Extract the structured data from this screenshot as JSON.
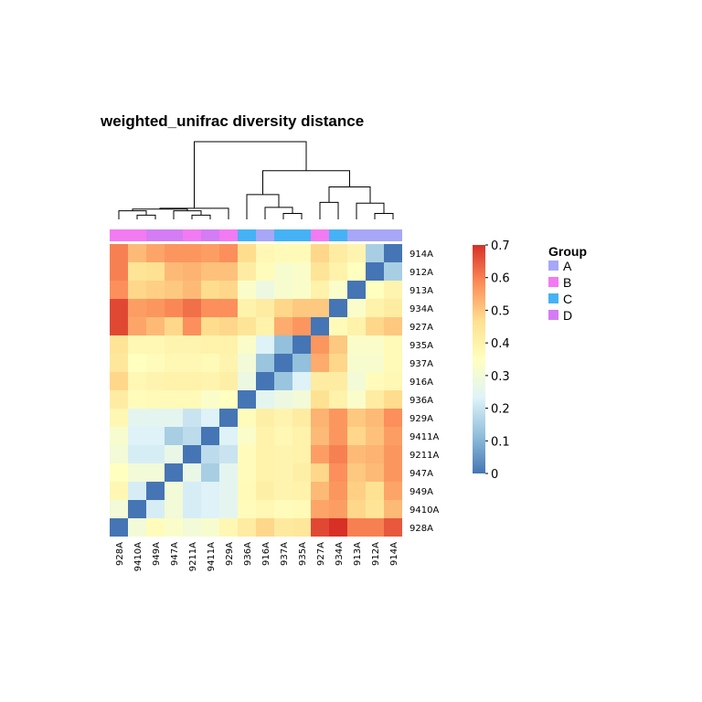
{
  "chart_data": {
    "type": "heatmap",
    "title": "weighted_unifrac diversity distance",
    "row_labels": [
      "914A",
      "912A",
      "913A",
      "934A",
      "927A",
      "935A",
      "937A",
      "916A",
      "936A",
      "929A",
      "9411A",
      "9211A",
      "947A",
      "949A",
      "9410A",
      "928A"
    ],
    "col_labels": [
      "928A",
      "9410A",
      "949A",
      "947A",
      "9211A",
      "9411A",
      "929A",
      "936A",
      "916A",
      "937A",
      "935A",
      "927A",
      "934A",
      "913A",
      "912A",
      "914A"
    ],
    "col_groups": [
      "B",
      "B",
      "D",
      "D",
      "B",
      "D",
      "B",
      "C",
      "A",
      "C",
      "C",
      "B",
      "C",
      "A",
      "A",
      "A"
    ],
    "values": [
      [
        0.6,
        0.52,
        0.55,
        0.57,
        0.57,
        0.56,
        0.58,
        0.47,
        0.38,
        0.37,
        0.37,
        0.48,
        0.42,
        0.39,
        0.15,
        0.0
      ],
      [
        0.6,
        0.45,
        0.46,
        0.52,
        0.53,
        0.51,
        0.51,
        0.42,
        0.36,
        0.32,
        0.33,
        0.45,
        0.4,
        0.35,
        0.0,
        0.15
      ],
      [
        0.58,
        0.48,
        0.49,
        0.5,
        0.52,
        0.47,
        0.48,
        0.33,
        0.28,
        0.32,
        0.33,
        0.4,
        0.33,
        0.0,
        0.35,
        0.39
      ],
      [
        0.67,
        0.56,
        0.57,
        0.59,
        0.62,
        0.58,
        0.58,
        0.4,
        0.42,
        0.48,
        0.5,
        0.5,
        0.0,
        0.33,
        0.4,
        0.42
      ],
      [
        0.67,
        0.55,
        0.52,
        0.48,
        0.58,
        0.47,
        0.48,
        0.45,
        0.4,
        0.54,
        0.57,
        0.0,
        0.37,
        0.4,
        0.48,
        0.5
      ],
      [
        0.45,
        0.38,
        0.38,
        0.39,
        0.39,
        0.4,
        0.4,
        0.33,
        0.23,
        0.12,
        0.0,
        0.57,
        0.5,
        0.33,
        0.33,
        0.37
      ],
      [
        0.44,
        0.35,
        0.36,
        0.38,
        0.38,
        0.37,
        0.39,
        0.3,
        0.13,
        0.0,
        0.12,
        0.54,
        0.48,
        0.32,
        0.32,
        0.37
      ],
      [
        0.48,
        0.38,
        0.39,
        0.4,
        0.4,
        0.39,
        0.41,
        0.28,
        0.0,
        0.13,
        0.23,
        0.42,
        0.42,
        0.3,
        0.36,
        0.38
      ],
      [
        0.42,
        0.36,
        0.37,
        0.37,
        0.37,
        0.33,
        0.35,
        0.0,
        0.25,
        0.28,
        0.3,
        0.46,
        0.4,
        0.33,
        0.42,
        0.47
      ],
      [
        0.38,
        0.25,
        0.25,
        0.25,
        0.2,
        0.23,
        0.0,
        0.36,
        0.41,
        0.39,
        0.42,
        0.53,
        0.57,
        0.5,
        0.52,
        0.58
      ],
      [
        0.32,
        0.23,
        0.23,
        0.15,
        0.18,
        0.0,
        0.23,
        0.33,
        0.4,
        0.38,
        0.4,
        0.52,
        0.57,
        0.48,
        0.51,
        0.56
      ],
      [
        0.3,
        0.22,
        0.22,
        0.27,
        0.0,
        0.18,
        0.2,
        0.36,
        0.4,
        0.39,
        0.4,
        0.56,
        0.6,
        0.52,
        0.53,
        0.57
      ],
      [
        0.35,
        0.3,
        0.3,
        0.0,
        0.27,
        0.15,
        0.25,
        0.36,
        0.4,
        0.39,
        0.41,
        0.48,
        0.58,
        0.5,
        0.52,
        0.57
      ],
      [
        0.38,
        0.22,
        0.0,
        0.3,
        0.22,
        0.23,
        0.25,
        0.37,
        0.41,
        0.39,
        0.4,
        0.52,
        0.57,
        0.49,
        0.46,
        0.55
      ],
      [
        0.3,
        0.0,
        0.22,
        0.3,
        0.22,
        0.23,
        0.25,
        0.36,
        0.38,
        0.36,
        0.37,
        0.55,
        0.56,
        0.48,
        0.45,
        0.52
      ],
      [
        0.0,
        0.3,
        0.36,
        0.33,
        0.3,
        0.32,
        0.38,
        0.42,
        0.48,
        0.43,
        0.44,
        0.67,
        0.7,
        0.6,
        0.6,
        0.65
      ]
    ],
    "color_scale": {
      "min": 0,
      "max": 0.7,
      "stops": [
        "#4575B4",
        "#91BFDB",
        "#E0F3F8",
        "#FFFFBF",
        "#FEE090",
        "#FC8D59",
        "#D73027"
      ],
      "ticks": [
        0,
        0.1,
        0.2,
        0.3,
        0.4,
        0.5,
        0.6,
        0.7
      ]
    },
    "legend": {
      "title": "Group",
      "items": [
        {
          "label": "A",
          "color": "#A7A7F7"
        },
        {
          "label": "B",
          "color": "#F27AF2"
        },
        {
          "label": "C",
          "color": "#45B2F5"
        },
        {
          "label": "D",
          "color": "#D37CF3"
        }
      ]
    },
    "dendrogram": {
      "leaf_order": [
        "928A",
        "9410A",
        "949A",
        "947A",
        "9211A",
        "9411A",
        "929A",
        "936A",
        "916A",
        "937A",
        "935A",
        "927A",
        "934A",
        "913A",
        "912A",
        "914A"
      ],
      "merges": [
        {
          "a": "L1",
          "b": "L2",
          "h": 0.05
        },
        {
          "a": "L4",
          "b": "L5",
          "h": 0.05
        },
        {
          "a": "L9",
          "b": "L10",
          "h": 0.07
        },
        {
          "a": "L14",
          "b": "L15",
          "h": 0.07
        },
        {
          "a": "L0",
          "b": "M0",
          "h": 0.1
        },
        {
          "a": "L3",
          "b": "M1",
          "h": 0.1
        },
        {
          "a": "L8",
          "b": "M2",
          "h": 0.14
        },
        {
          "a": "L13",
          "b": "M3",
          "h": 0.19
        },
        {
          "a": "M4",
          "b": "M5",
          "h": 0.12
        },
        {
          "a": "L11",
          "b": "L12",
          "h": 0.2
        },
        {
          "a": "M8",
          "b": "L6",
          "h": 0.13
        },
        {
          "a": "L7",
          "b": "M6",
          "h": 0.29
        },
        {
          "a": "M9",
          "b": "M7",
          "h": 0.38
        },
        {
          "a": "M11",
          "b": "M12",
          "h": 0.57
        },
        {
          "a": "M10",
          "b": "M13",
          "h": 0.91
        }
      ]
    }
  }
}
